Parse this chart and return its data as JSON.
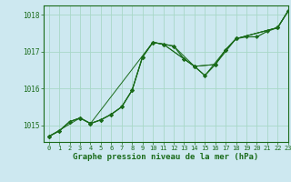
{
  "title": "Graphe pression niveau de la mer (hPa)",
  "bg_color": "#cde8f0",
  "grid_color": "#a8d8c8",
  "line_color": "#1a6b1a",
  "marker_color": "#1a6b1a",
  "xlim": [
    -0.5,
    23
  ],
  "ylim": [
    1014.55,
    1018.25
  ],
  "yticks": [
    1015,
    1016,
    1017,
    1018
  ],
  "xticks": [
    0,
    1,
    2,
    3,
    4,
    5,
    6,
    7,
    8,
    9,
    10,
    11,
    12,
    13,
    14,
    15,
    16,
    17,
    18,
    19,
    20,
    21,
    22,
    23
  ],
  "series_main": [
    [
      0,
      1014.7
    ],
    [
      1,
      1014.85
    ],
    [
      2,
      1015.1
    ],
    [
      3,
      1015.2
    ],
    [
      4,
      1015.05
    ],
    [
      5,
      1015.15
    ],
    [
      6,
      1015.3
    ],
    [
      7,
      1015.5
    ],
    [
      8,
      1015.95
    ],
    [
      9,
      1016.85
    ],
    [
      10,
      1017.25
    ],
    [
      11,
      1017.2
    ],
    [
      12,
      1017.15
    ],
    [
      13,
      1016.8
    ],
    [
      14,
      1016.6
    ],
    [
      15,
      1016.35
    ],
    [
      16,
      1016.65
    ],
    [
      17,
      1017.05
    ],
    [
      18,
      1017.35
    ],
    [
      19,
      1017.4
    ],
    [
      20,
      1017.4
    ],
    [
      21,
      1017.55
    ],
    [
      22,
      1017.65
    ],
    [
      23,
      1018.1
    ]
  ],
  "series_b": [
    [
      0,
      1014.7
    ],
    [
      1,
      1014.85
    ],
    [
      2,
      1015.1
    ],
    [
      3,
      1015.2
    ],
    [
      4,
      1015.05
    ],
    [
      5,
      1015.15
    ],
    [
      6,
      1015.3
    ],
    [
      7,
      1015.5
    ],
    [
      8,
      1015.95
    ],
    [
      9,
      1016.85
    ],
    [
      10,
      1017.25
    ],
    [
      11,
      1017.2
    ],
    [
      13,
      1016.8
    ],
    [
      14,
      1016.6
    ],
    [
      16,
      1016.65
    ],
    [
      17,
      1017.05
    ],
    [
      18,
      1017.35
    ],
    [
      22,
      1017.65
    ],
    [
      23,
      1018.1
    ]
  ],
  "series_c": [
    [
      0,
      1014.7
    ],
    [
      1,
      1014.85
    ],
    [
      2,
      1015.1
    ],
    [
      3,
      1015.2
    ],
    [
      4,
      1015.05
    ],
    [
      5,
      1015.15
    ],
    [
      6,
      1015.3
    ],
    [
      7,
      1015.5
    ],
    [
      8,
      1015.95
    ],
    [
      9,
      1016.85
    ],
    [
      10,
      1017.25
    ],
    [
      12,
      1017.15
    ],
    [
      14,
      1016.6
    ],
    [
      15,
      1016.35
    ],
    [
      17,
      1017.05
    ],
    [
      18,
      1017.35
    ],
    [
      22,
      1017.65
    ],
    [
      23,
      1018.1
    ]
  ],
  "series_d": [
    [
      0,
      1014.7
    ],
    [
      3,
      1015.2
    ],
    [
      4,
      1015.05
    ],
    [
      10,
      1017.25
    ],
    [
      11,
      1017.2
    ],
    [
      14,
      1016.6
    ],
    [
      16,
      1016.65
    ],
    [
      18,
      1017.35
    ],
    [
      22,
      1017.65
    ],
    [
      23,
      1018.1
    ]
  ]
}
